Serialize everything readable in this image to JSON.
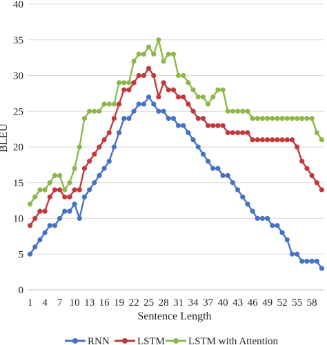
{
  "chart_data": {
    "type": "line",
    "title": "",
    "xlabel": "Sentence Length",
    "ylabel": "BLEU",
    "x": [
      1,
      2,
      3,
      4,
      5,
      6,
      7,
      8,
      9,
      10,
      11,
      12,
      13,
      14,
      15,
      16,
      17,
      18,
      19,
      20,
      21,
      22,
      23,
      24,
      25,
      26,
      27,
      28,
      29,
      30,
      31,
      32,
      33,
      34,
      35,
      36,
      37,
      38,
      39,
      40,
      41,
      42,
      43,
      44,
      45,
      46,
      47,
      48,
      49,
      50,
      51,
      52,
      53,
      54,
      55,
      56,
      57,
      58,
      59,
      60
    ],
    "xticks": [
      "1",
      "4",
      "7",
      "10",
      "13",
      "16",
      "19",
      "22",
      "25",
      "28",
      "31",
      "34",
      "37",
      "40",
      "43",
      "46",
      "49",
      "52",
      "55",
      "58"
    ],
    "ylim": [
      0,
      40
    ],
    "yticks": [
      "0",
      "5",
      "10",
      "15",
      "20",
      "25",
      "30",
      "35",
      "40"
    ],
    "grid": "horizontal",
    "legend_position": "bottom",
    "series": [
      {
        "name": "RNN",
        "color": "#4472c4",
        "values": [
          5,
          6,
          7,
          8,
          9,
          9,
          10,
          11,
          11,
          12,
          10,
          13,
          14,
          15,
          16,
          17,
          18,
          20,
          22,
          24,
          24,
          25,
          26,
          26,
          27,
          26,
          25,
          25,
          24,
          24,
          23,
          23,
          22,
          21,
          20,
          19,
          18,
          17,
          17,
          16,
          16,
          15,
          14,
          13,
          12,
          11,
          10,
          10,
          10,
          9,
          9,
          8,
          7,
          5,
          5,
          4,
          4,
          4,
          4,
          3
        ]
      },
      {
        "name": "LSTM",
        "color": "#c0393b",
        "values": [
          9,
          10,
          11,
          11,
          13,
          14,
          14,
          13,
          13,
          14,
          14,
          17,
          18,
          19,
          20,
          21,
          22,
          24,
          26,
          28,
          28,
          29,
          30,
          30,
          31,
          30,
          27,
          29,
          28,
          28,
          27,
          27,
          26,
          25,
          24,
          24,
          23,
          23,
          23,
          23,
          22,
          22,
          22,
          22,
          22,
          21,
          21,
          21,
          21,
          21,
          21,
          21,
          21,
          21,
          20,
          18,
          17,
          16,
          15,
          14
        ]
      },
      {
        "name": "LSTM with Attention",
        "color": "#8cb84a",
        "values": [
          12,
          13,
          14,
          14,
          15,
          16,
          16,
          14,
          15,
          17,
          20,
          24,
          25,
          25,
          25,
          26,
          26,
          26,
          29,
          29,
          29,
          32,
          33,
          33,
          34,
          33,
          35,
          32,
          33,
          33,
          30,
          30,
          29,
          28,
          27,
          27,
          26,
          27,
          28,
          28,
          25,
          25,
          25,
          25,
          25,
          24,
          24,
          24,
          24,
          24,
          24,
          24,
          24,
          24,
          24,
          24,
          24,
          24,
          22,
          21
        ]
      }
    ]
  }
}
